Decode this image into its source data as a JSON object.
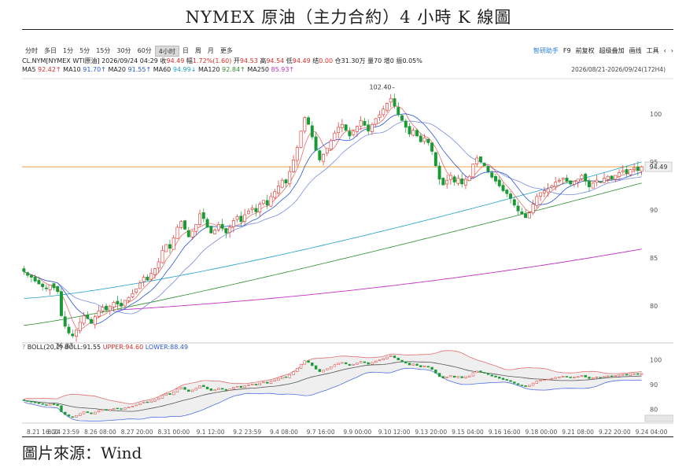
{
  "title": "NYMEX 原油（主力合約）4 小時 K 線圖",
  "source": "圖片來源：Wind",
  "toolbar": {
    "periods": [
      "分时",
      "多日",
      "1分",
      "5分",
      "15分",
      "30分",
      "60分",
      "4小时",
      "日",
      "周",
      "月",
      "更多"
    ],
    "active": "4小时",
    "right_tools": [
      "智研助手",
      "F9",
      "前复权",
      "超级叠加",
      "画线",
      "工具"
    ],
    "nav_left": "‹",
    "nav_right": "›"
  },
  "info": {
    "symbol": "CL.NYM[NYMEX WTI原油]",
    "datetime": "2026/09/24 04:29",
    "close_label": "收",
    "close": "94.49",
    "change_label": "幅",
    "change": "1.72%(1.60)",
    "open_label": "开",
    "open": "94.53",
    "high_label": "高",
    "high": "94.54",
    "low_label": "低",
    "low": "94.49",
    "settle_label": "结",
    "settle": "0.00",
    "oi_label": "仓",
    "oi": "31.30万",
    "vol_label": "量",
    "vol": "70",
    "oichg_label": "增",
    "oichg": "0",
    "amp_label": "振",
    "amp": "0.05%"
  },
  "ma_legend": [
    {
      "name": "MA5",
      "value": "92.42↑",
      "color": "#d9302b"
    },
    {
      "name": "MA10",
      "value": "91.70↑",
      "color": "#2a56d6"
    },
    {
      "name": "MA20",
      "value": "91.55↑",
      "color": "#2a56d6"
    },
    {
      "name": "MA60",
      "value": "94.99↓",
      "color": "#20a0c8"
    },
    {
      "name": "MA120",
      "value": "92.84↑",
      "color": "#2f8f2f"
    },
    {
      "name": "MA250",
      "value": "85.93↑",
      "color": "#c030c0"
    }
  ],
  "range_text": "2026/08/21-2026/09/24(172H4)",
  "boll_legend": {
    "prefix": "BOLL(20,2)",
    "boll_label": "BOLL:",
    "boll": "91.55",
    "upper_label": "UPPER:",
    "upper": "94.60",
    "lower_label": "LOWER:",
    "lower": "88.49",
    "help": "?"
  },
  "chart_data": {
    "type": "candlestick",
    "price_axis": {
      "ticks": [
        80,
        85,
        90,
        95,
        100
      ],
      "ylim": [
        76.5,
        103.5
      ]
    },
    "boll_axis": {
      "ticks": [
        80,
        90,
        100
      ],
      "ylim": [
        77,
        103
      ]
    },
    "x_ticks": [
      "8.21 16:00",
      "8.24 23:59",
      "8.26 08:00",
      "8.27 20:00",
      "8.31 00:00",
      "9.1 12:00",
      "9.2 23:59",
      "9.4 08:00",
      "9.7 16:00",
      "9.9 00:00",
      "9.10 12:00",
      "9.13 20:00",
      "9.15 04:00",
      "9.16 16:00",
      "9.18 00:00",
      "9.21 08:00",
      "9.22 20:00",
      "9.24 04:00"
    ],
    "annotations": {
      "max_label": "102.40",
      "max_value": 102.4,
      "min_label": "76.37",
      "min_value": 76.37,
      "current_price_label": "94.49",
      "current_price": 94.49
    },
    "closes": [
      83.6,
      83.2,
      83.0,
      82.6,
      82.3,
      82.0,
      81.8,
      82.2,
      81.9,
      81.5,
      79.0,
      77.9,
      77.2,
      76.9,
      77.5,
      78.3,
      79.0,
      78.7,
      78.2,
      78.9,
      79.5,
      79.9,
      79.6,
      80.0,
      80.4,
      80.2,
      80.0,
      80.6,
      80.9,
      81.3,
      81.8,
      82.4,
      83.0,
      82.7,
      83.4,
      83.9,
      84.6,
      85.8,
      86.4,
      86.0,
      87.1,
      88.2,
      88.8,
      88.0,
      87.2,
      87.8,
      88.5,
      89.6,
      89.1,
      88.2,
      87.6,
      87.9,
      88.5,
      88.1,
      87.6,
      88.2,
      88.9,
      89.3,
      88.8,
      89.5,
      89.9,
      90.2,
      89.8,
      90.6,
      91.0,
      90.5,
      91.4,
      91.9,
      92.5,
      93.1,
      92.8,
      94.0,
      95.2,
      96.5,
      98.2,
      99.6,
      98.9,
      97.6,
      96.2,
      95.2,
      95.8,
      96.4,
      97.2,
      98.0,
      98.6,
      98.9,
      98.3,
      97.7,
      98.2,
      98.7,
      99.3,
      98.8,
      98.2,
      98.9,
      99.5,
      99.9,
      100.5,
      101.1,
      101.6,
      100.8,
      99.9,
      99.3,
      98.6,
      97.9,
      98.3,
      97.7,
      97.1,
      97.5,
      97.0,
      96.1,
      94.6,
      93.2,
      92.6,
      93.1,
      93.6,
      92.9,
      93.3,
      92.7,
      93.2,
      93.5,
      94.8,
      95.4,
      95.0,
      94.6,
      94.0,
      93.4,
      93.0,
      92.5,
      92.0,
      91.7,
      91.2,
      90.5,
      89.9,
      89.6,
      89.2,
      89.7,
      90.6,
      91.4,
      91.8,
      92.0,
      92.2,
      92.5,
      92.9,
      93.1,
      93.3,
      93.0,
      92.7,
      93.0,
      93.2,
      93.6,
      93.0,
      92.4,
      92.8,
      93.1,
      92.9,
      93.3,
      93.5,
      93.2,
      93.6,
      93.9,
      94.1,
      93.8,
      94.2,
      94.4,
      94.1,
      94.49
    ],
    "series": [
      {
        "name": "MA5",
        "color": "#d9302b"
      },
      {
        "name": "MA10",
        "color": "#2a56d6"
      },
      {
        "name": "MA20",
        "color": "#2a56d6"
      },
      {
        "name": "MA60",
        "color": "#20a0c8"
      },
      {
        "name": "MA120",
        "color": "#2f8f2f"
      },
      {
        "name": "MA250",
        "color": "#c030c0"
      }
    ],
    "colors": {
      "up": "#d9302b",
      "down": "#1a9a35",
      "band": "#e8e8e8",
      "price_line": "#f0a040"
    }
  }
}
